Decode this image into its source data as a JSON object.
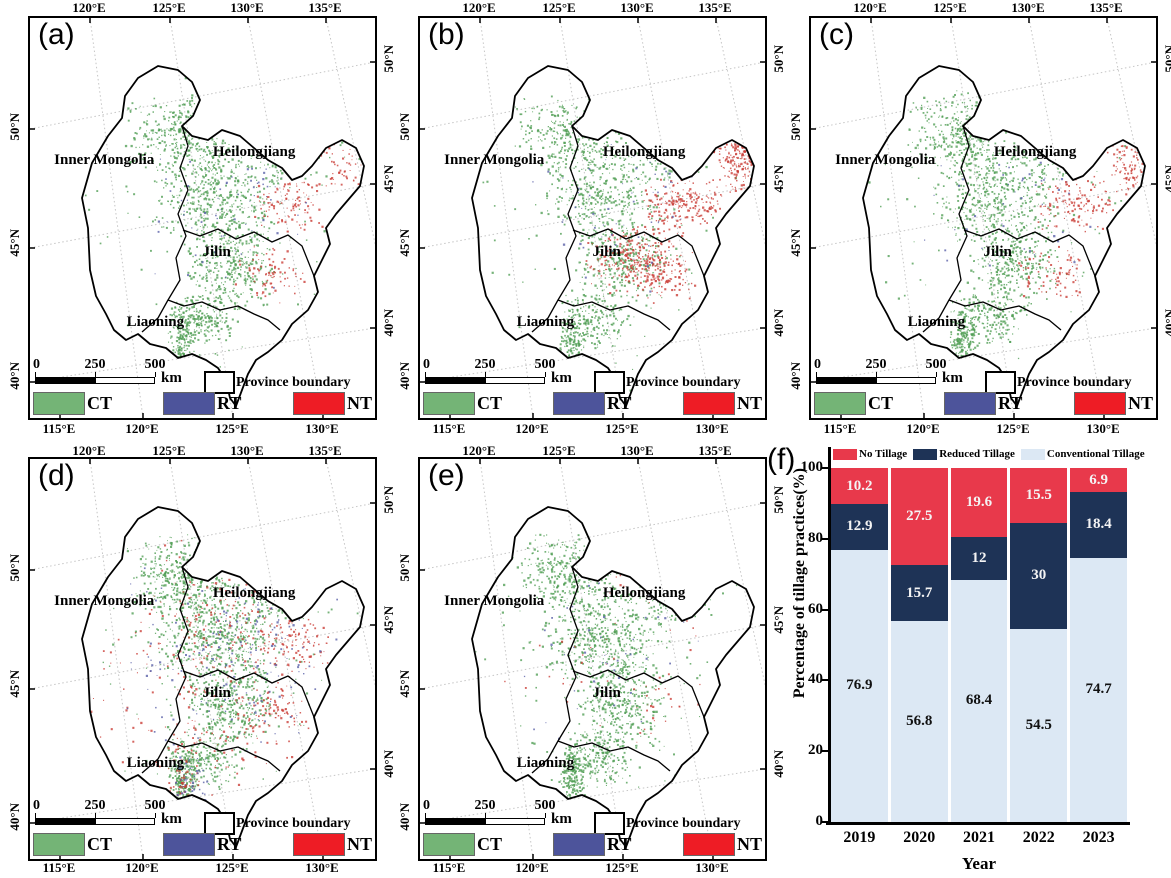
{
  "figure": {
    "panel_letters": [
      "(a)",
      "(b)",
      "(c)",
      "(d)",
      "(e)",
      "(f)"
    ]
  },
  "map_panel": {
    "top_ticks": [
      "120°E",
      "125°E",
      "130°E",
      "135°E"
    ],
    "bottom_ticks": [
      "115°E",
      "120°E",
      "125°E",
      "130°E"
    ],
    "left_ticks": [
      "50°N",
      "45°N",
      "40°N"
    ],
    "right_ticks": [
      "50°N",
      "45°N",
      "40°N"
    ],
    "provinces": [
      "Inner Mongolia",
      "Heilongjiang",
      "Jilin",
      "Liaoning"
    ],
    "scale_bar": {
      "ticks": [
        "0",
        "250",
        "500"
      ],
      "unit": "km"
    },
    "legend": {
      "boundary_label": "Province boundary",
      "classes": [
        {
          "label": "CT",
          "color": "#74b476"
        },
        {
          "label": "RT",
          "color": "#4d549b"
        },
        {
          "label": "NT",
          "color": "#ee1c25"
        }
      ]
    }
  },
  "chart_data": {
    "type": "bar",
    "stacked": true,
    "title": "",
    "xlabel": "Year",
    "ylabel": "Percentage of tillage practices(%)",
    "ylim": [
      0,
      100
    ],
    "yticks": [
      0,
      20,
      40,
      60,
      80,
      100
    ],
    "legend_position": "top",
    "grid": false,
    "categories": [
      "2019",
      "2020",
      "2021",
      "2022",
      "2023"
    ],
    "series": [
      {
        "name": "No Tillage",
        "color": "#e8394b",
        "values": [
          10.2,
          27.5,
          19.6,
          15.5,
          6.9
        ]
      },
      {
        "name": "Reduced Tillage",
        "color": "#1e3356",
        "values": [
          12.9,
          15.7,
          12,
          30,
          18.4
        ]
      },
      {
        "name": "Conventional Tillage",
        "color": "#dce8f4",
        "values": [
          76.9,
          56.8,
          68.4,
          54.5,
          74.7
        ]
      }
    ]
  }
}
